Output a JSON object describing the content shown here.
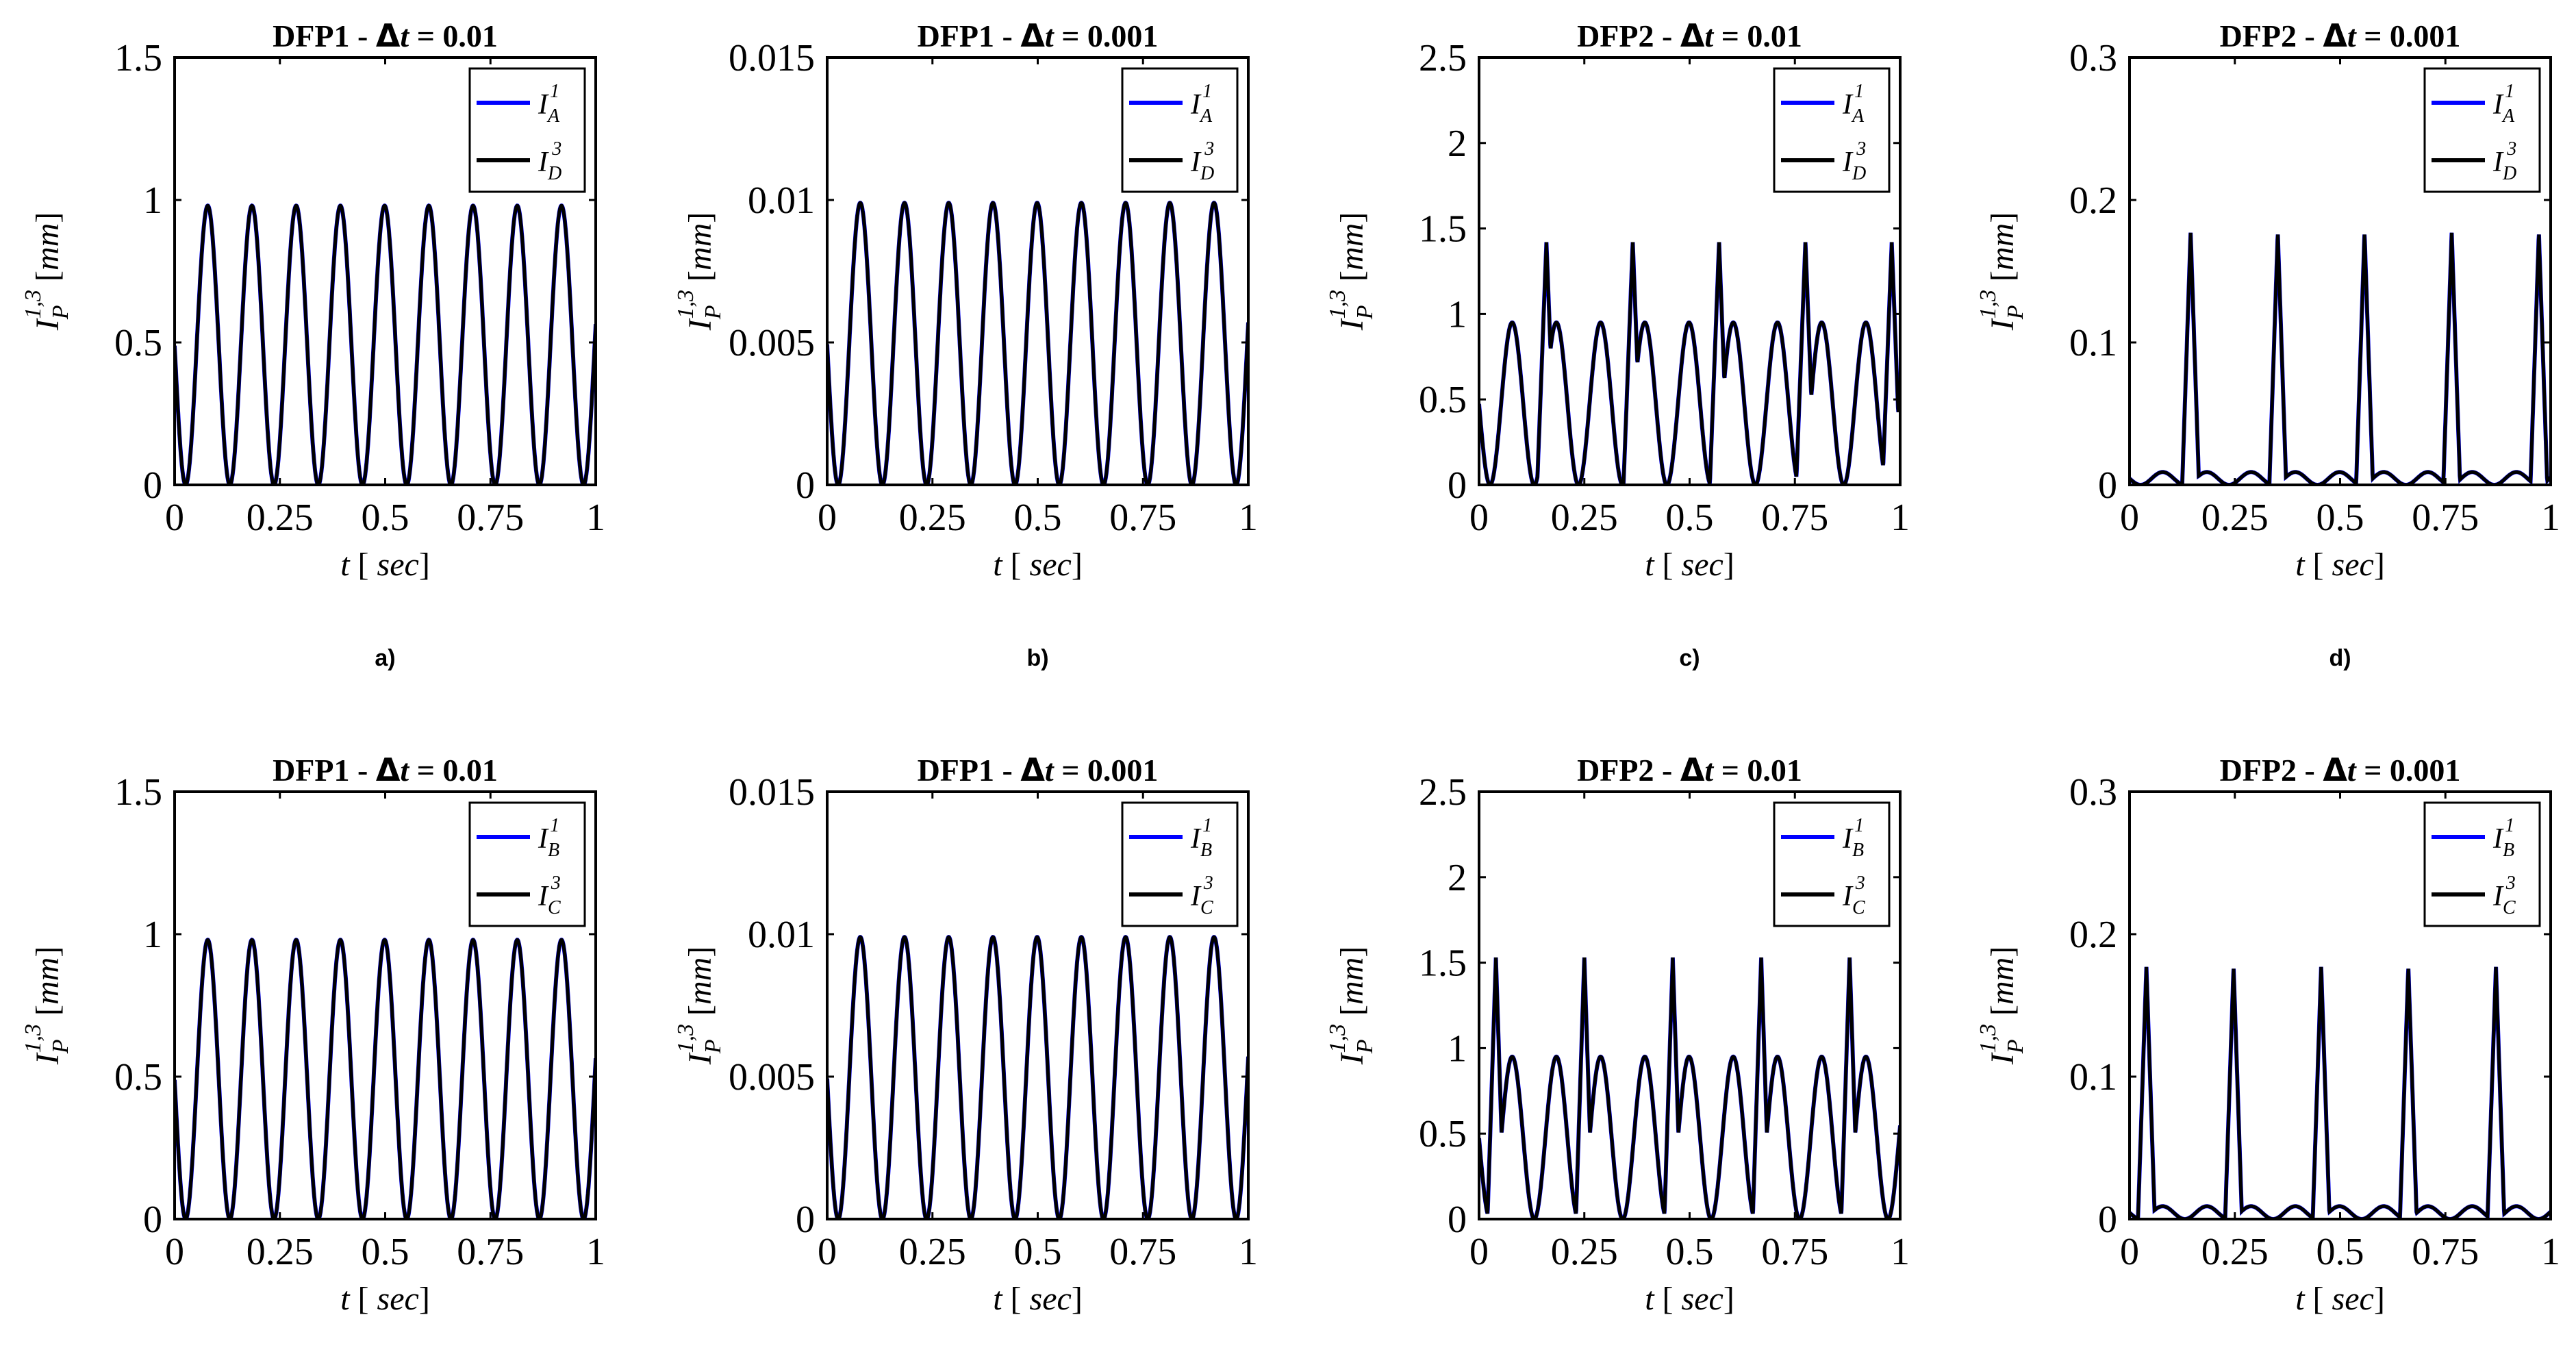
{
  "chart_data": [
    {
      "type": "line",
      "id": "a-top",
      "panel_label": "a)",
      "title": "DFP1 - Δt = 0.01",
      "title_prefix": "DFP1 - ",
      "title_suffix": " = 0.01",
      "xlabel": "t [ sec]",
      "ylabel": "I_P^{1,3} [mm]",
      "xlim": [
        0,
        1
      ],
      "ylim": [
        0,
        1.5
      ],
      "xticks": [
        0,
        0.25,
        0.5,
        0.75,
        1
      ],
      "xtick_labels": [
        "0",
        "0.25",
        "0.5",
        "0.75",
        "1"
      ],
      "yticks": [
        0,
        0.5,
        1,
        1.5
      ],
      "ytick_labels": [
        "0",
        "0.5",
        "1",
        "1.5"
      ],
      "legend": {
        "position": "top-right",
        "entries": [
          {
            "name": "I_A^1",
            "base": "I",
            "sub": "A",
            "sup": "1",
            "color": "#0000ff"
          },
          {
            "name": "I_D^3",
            "base": "I",
            "sub": "D",
            "sup": "3",
            "color": "#000000"
          }
        ]
      },
      "signal": {
        "kind": "sin",
        "amplitude": 0.98,
        "period": 0.105,
        "phase": 0.0262,
        "peak": 0
      }
    },
    {
      "type": "line",
      "id": "b-top",
      "panel_label": "b)",
      "title": "DFP1 - Δt = 0.001",
      "title_prefix": "DFP1 - ",
      "title_suffix": " = 0.001",
      "xlabel": "t [ sec]",
      "ylabel": "I_P^{1,3} [mm]",
      "xlim": [
        0,
        1
      ],
      "ylim": [
        0,
        0.015
      ],
      "xticks": [
        0,
        0.25,
        0.5,
        0.75,
        1
      ],
      "xtick_labels": [
        "0",
        "0.25",
        "0.5",
        "0.75",
        "1"
      ],
      "yticks": [
        0,
        0.005,
        0.01,
        0.015
      ],
      "ytick_labels": [
        "0",
        "0.005",
        "0.01",
        "0.015"
      ],
      "legend": {
        "position": "top-right",
        "entries": [
          {
            "name": "I_A^1",
            "base": "I",
            "sub": "A",
            "sup": "1",
            "color": "#0000ff"
          },
          {
            "name": "I_D^3",
            "base": "I",
            "sub": "D",
            "sup": "3",
            "color": "#000000"
          }
        ]
      },
      "signal": {
        "kind": "sin",
        "amplitude": 0.0099,
        "period": 0.105,
        "phase": 0.0262,
        "peak": 0
      }
    },
    {
      "type": "line",
      "id": "c-top",
      "panel_label": "c)",
      "title": "DFP2 - Δt = 0.01",
      "title_prefix": "DFP2 - ",
      "title_suffix": " = 0.01",
      "xlabel": "t [ sec]",
      "ylabel": "I_P^{1,3} [mm]",
      "xlim": [
        0,
        1
      ],
      "ylim": [
        0,
        2.5
      ],
      "xticks": [
        0,
        0.25,
        0.5,
        0.75,
        1
      ],
      "xtick_labels": [
        "0",
        "0.25",
        "0.5",
        "0.75",
        "1"
      ],
      "yticks": [
        0,
        0.5,
        1,
        1.5,
        2,
        2.5
      ],
      "ytick_labels": [
        "0",
        "0.5",
        "1",
        "1.5",
        "2",
        "2.5"
      ],
      "legend": {
        "position": "top-right",
        "entries": [
          {
            "name": "I_A^1",
            "base": "I",
            "sub": "A",
            "sup": "1",
            "color": "#0000ff"
          },
          {
            "name": "I_D^3",
            "base": "I",
            "sub": "D",
            "sup": "3",
            "color": "#000000"
          }
        ]
      },
      "signal": {
        "kind": "sin",
        "amplitude": 0.95,
        "period": 0.105,
        "phase": 0.0262,
        "peak": 1.42,
        "spike_times": [
          0.16,
          0.365,
          0.57,
          0.775,
          0.98
        ],
        "spike_width": 0.022
      }
    },
    {
      "type": "line",
      "id": "d-top",
      "panel_label": "d)",
      "title": "DFP2 - Δt = 0.001",
      "title_prefix": "DFP2 - ",
      "title_suffix": " = 0.001",
      "xlabel": "t [ sec]",
      "ylabel": "I_P^{1,3} [mm]",
      "xlim": [
        0,
        1
      ],
      "ylim": [
        0,
        0.3
      ],
      "xticks": [
        0,
        0.25,
        0.5,
        0.75,
        1
      ],
      "xtick_labels": [
        "0",
        "0.25",
        "0.5",
        "0.75",
        "1"
      ],
      "yticks": [
        0,
        0.1,
        0.2,
        0.3
      ],
      "ytick_labels": [
        "0",
        "0.1",
        "0.2",
        "0.3"
      ],
      "legend": {
        "position": "top-right",
        "entries": [
          {
            "name": "I_A^1",
            "base": "I",
            "sub": "A",
            "sup": "1",
            "color": "#0000ff"
          },
          {
            "name": "I_D^3",
            "base": "I",
            "sub": "D",
            "sup": "3",
            "color": "#000000"
          }
        ]
      },
      "signal": {
        "kind": "sin",
        "amplitude": 0.009,
        "period": 0.105,
        "phase": 0.0262,
        "peak": 0.177,
        "spike_times": [
          0.145,
          0.352,
          0.558,
          0.765,
          0.972
        ],
        "spike_width": 0.02
      }
    },
    {
      "type": "line",
      "id": "a-bottom",
      "title": "DFP1 - Δt = 0.01",
      "title_prefix": "DFP1 - ",
      "title_suffix": " = 0.01",
      "xlabel": "t [ sec]",
      "ylabel": "I_P^{1,3} [mm]",
      "xlim": [
        0,
        1
      ],
      "ylim": [
        0,
        1.5
      ],
      "xticks": [
        0,
        0.25,
        0.5,
        0.75,
        1
      ],
      "xtick_labels": [
        "0",
        "0.25",
        "0.5",
        "0.75",
        "1"
      ],
      "yticks": [
        0,
        0.5,
        1,
        1.5
      ],
      "ytick_labels": [
        "0",
        "0.5",
        "1",
        "1.5"
      ],
      "legend": {
        "position": "top-right",
        "entries": [
          {
            "name": "I_B^1",
            "base": "I",
            "sub": "B",
            "sup": "1",
            "color": "#0000ff"
          },
          {
            "name": "I_C^3",
            "base": "I",
            "sub": "C",
            "sup": "3",
            "color": "#000000"
          }
        ]
      },
      "signal": {
        "kind": "sin",
        "amplitude": 0.98,
        "period": 0.105,
        "phase": 0.0262,
        "peak": 0
      }
    },
    {
      "type": "line",
      "id": "b-bottom",
      "title": "DFP1 - Δt = 0.001",
      "title_prefix": "DFP1 - ",
      "title_suffix": " = 0.001",
      "xlabel": "t [ sec]",
      "ylabel": "I_P^{1,3} [mm]",
      "xlim": [
        0,
        1
      ],
      "ylim": [
        0,
        0.015
      ],
      "xticks": [
        0,
        0.25,
        0.5,
        0.75,
        1
      ],
      "xtick_labels": [
        "0",
        "0.25",
        "0.5",
        "0.75",
        "1"
      ],
      "yticks": [
        0,
        0.005,
        0.01,
        0.015
      ],
      "ytick_labels": [
        "0",
        "0.005",
        "0.01",
        "0.015"
      ],
      "legend": {
        "position": "top-right",
        "entries": [
          {
            "name": "I_B^1",
            "base": "I",
            "sub": "B",
            "sup": "1",
            "color": "#0000ff"
          },
          {
            "name": "I_C^3",
            "base": "I",
            "sub": "C",
            "sup": "3",
            "color": "#000000"
          }
        ]
      },
      "signal": {
        "kind": "sin",
        "amplitude": 0.0099,
        "period": 0.105,
        "phase": 0.0262,
        "peak": 0
      }
    },
    {
      "type": "line",
      "id": "c-bottom",
      "title": "DFP2 - Δt = 0.01",
      "title_prefix": "DFP2 - ",
      "title_suffix": " = 0.01",
      "xlabel": "t [ sec]",
      "ylabel": "I_P^{1,3} [mm]",
      "xlim": [
        0,
        1
      ],
      "ylim": [
        0,
        2.5
      ],
      "xticks": [
        0,
        0.25,
        0.5,
        0.75,
        1
      ],
      "xtick_labels": [
        "0",
        "0.25",
        "0.5",
        "0.75",
        "1"
      ],
      "yticks": [
        0,
        0.5,
        1,
        1.5,
        2,
        2.5
      ],
      "ytick_labels": [
        "0",
        "0.5",
        "1",
        "1.5",
        "2",
        "2.5"
      ],
      "legend": {
        "position": "top-right",
        "entries": [
          {
            "name": "I_B^1",
            "base": "I",
            "sub": "B",
            "sup": "1",
            "color": "#0000ff"
          },
          {
            "name": "I_C^3",
            "base": "I",
            "sub": "C",
            "sup": "3",
            "color": "#000000"
          }
        ]
      },
      "signal": {
        "kind": "sin",
        "amplitude": 0.95,
        "period": 0.105,
        "phase": 0.0262,
        "peak": 1.53,
        "spike_times": [
          0.04,
          0.25,
          0.46,
          0.67,
          0.88
        ],
        "spike_width": 0.02
      }
    },
    {
      "type": "line",
      "id": "d-bottom",
      "title": "DFP2 - Δt = 0.001",
      "title_prefix": "DFP2 - ",
      "title_suffix": " = 0.001",
      "xlabel": "t [ sec]",
      "ylabel": "I_P^{1,3} [mm]",
      "xlim": [
        0,
        1
      ],
      "ylim": [
        0,
        0.3
      ],
      "xticks": [
        0,
        0.25,
        0.5,
        0.75,
        1
      ],
      "xtick_labels": [
        "0",
        "0.25",
        "0.5",
        "0.75",
        "1"
      ],
      "yticks": [
        0,
        0.1,
        0.2,
        0.3
      ],
      "ytick_labels": [
        "0",
        "0.1",
        "0.2",
        "0.3"
      ],
      "legend": {
        "position": "top-right",
        "entries": [
          {
            "name": "I_B^1",
            "base": "I",
            "sub": "B",
            "sup": "1",
            "color": "#0000ff"
          },
          {
            "name": "I_C^3",
            "base": "I",
            "sub": "C",
            "sup": "3",
            "color": "#000000"
          }
        ]
      },
      "signal": {
        "kind": "sin",
        "amplitude": 0.009,
        "period": 0.105,
        "phase": 0.0262,
        "peak": 0.177,
        "spike_times": [
          0.04,
          0.247,
          0.455,
          0.662,
          0.87
        ],
        "spike_width": 0.02
      }
    }
  ]
}
